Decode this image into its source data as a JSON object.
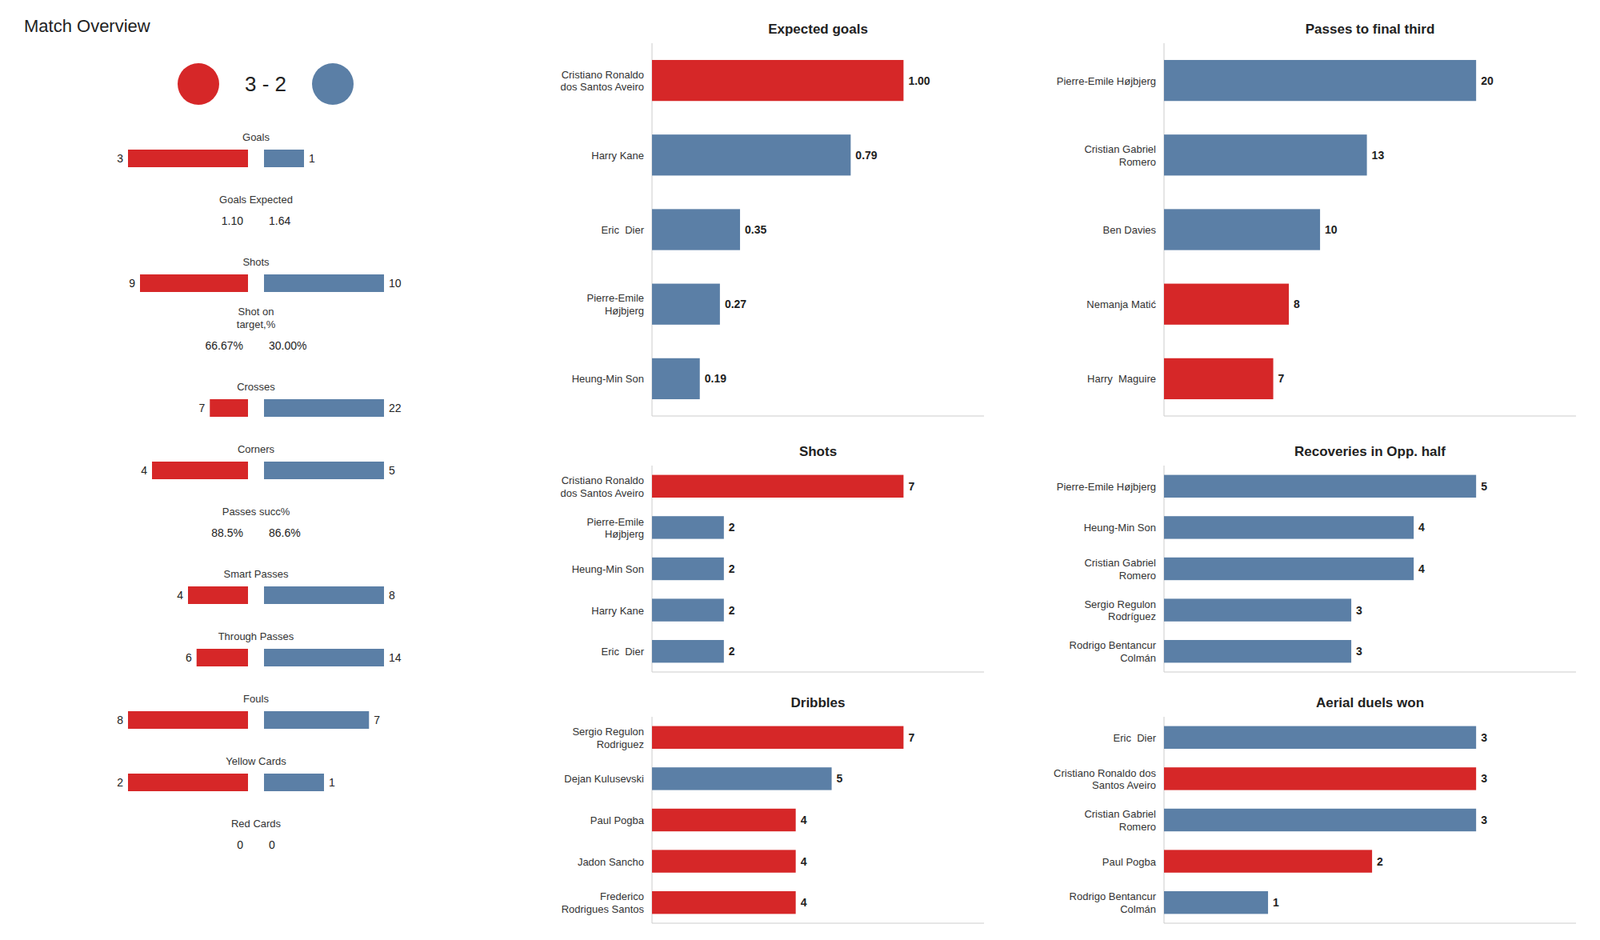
{
  "chart_data": [
    {
      "type": "diverging",
      "title": "Match Overview",
      "subtitle": "3 - 2",
      "data_labels": true,
      "categories": [
        "Goals",
        "Goals Expected",
        "Shots",
        "Shot on\ntarget,%",
        "Crosses",
        "Corners",
        "Passes succ%",
        "Smart Passes",
        "Through Passes",
        "Fouls",
        "Yellow Cards",
        "Red Cards"
      ],
      "series": [
        {
          "color": "#d62728",
          "values": [
            3,
            1.1,
            9,
            66.67,
            7,
            4,
            88.5,
            4,
            6,
            8,
            2,
            0
          ],
          "value_labels": [
            "3",
            "1.10",
            "9",
            "66.67%",
            "7",
            "4",
            "88.5%",
            "4",
            "6",
            "8",
            "2",
            "0"
          ],
          "colors": [
            "#d62728",
            null,
            "#d62728",
            null,
            "#d62728",
            "#d62728",
            null,
            "#d62728",
            "#d62728",
            "#d62728",
            "#d62728",
            null
          ]
        },
        {
          "color": "#5b7fa6",
          "values": [
            1,
            1.64,
            10,
            30.0,
            22,
            5,
            86.6,
            8,
            14,
            7,
            1,
            0
          ],
          "value_labels": [
            "1",
            "1.64",
            "10",
            "30.00%",
            "22",
            "5",
            "86.6%",
            "8",
            "14",
            "7",
            "1",
            "0"
          ],
          "colors": [
            "#5b7fa6",
            null,
            "#5b7fa6",
            null,
            "#5b7fa6",
            "#5b7fa6",
            null,
            "#5b7fa6",
            "#5b7fa6",
            "#5b7fa6",
            "#5b7fa6",
            null
          ]
        }
      ]
    },
    {
      "type": "bar",
      "orientation": "horizontal",
      "title": "Expected goals",
      "data_labels": true,
      "tick_labels": "y",
      "categories": [
        "Cristiano Ronaldo\ndos Santos Aveiro",
        "Harry Kane",
        "Eric  Dier",
        "Pierre-Emile\nHøjbjerg",
        "Heung-Min Son"
      ],
      "values": [
        1.0,
        0.79,
        0.35,
        0.27,
        0.19
      ],
      "value_labels": [
        "1.00",
        "0.79",
        "0.35",
        "0.27",
        "0.19"
      ],
      "colors": [
        "#d62728",
        "#5b7fa6",
        "#5b7fa6",
        "#5b7fa6",
        "#5b7fa6"
      ],
      "xlim": [
        0,
        1.32
      ]
    },
    {
      "type": "bar",
      "orientation": "horizontal",
      "title": "Shots",
      "data_labels": true,
      "tick_labels": "y",
      "categories": [
        "Cristiano Ronaldo\ndos Santos Aveiro",
        "Pierre-Emile\nHøjbjerg",
        "Heung-Min Son",
        "Harry Kane",
        "Eric  Dier"
      ],
      "values": [
        7,
        2,
        2,
        2,
        2
      ],
      "colors": [
        "#d62728",
        "#5b7fa6",
        "#5b7fa6",
        "#5b7fa6",
        "#5b7fa6"
      ],
      "xlim": [
        0,
        9.24
      ]
    },
    {
      "type": "bar",
      "orientation": "horizontal",
      "title": "Dribbles",
      "data_labels": true,
      "tick_labels": "y",
      "categories": [
        "Sergio Regulon\nRodriguez",
        "Dejan Kulusevski",
        "Paul Pogba",
        "Jadon Sancho",
        "Frederico\nRodrigues Santos"
      ],
      "values": [
        7,
        5,
        4,
        4,
        4
      ],
      "colors": [
        "#d62728",
        "#5b7fa6",
        "#d62728",
        "#d62728",
        "#d62728"
      ],
      "xlim": [
        0,
        9.24
      ]
    },
    {
      "type": "bar",
      "orientation": "horizontal",
      "title": "Passes to final third",
      "data_labels": true,
      "tick_labels": "y",
      "categories": [
        "Pierre-Emile Højbjerg",
        "Cristian Gabriel\nRomero",
        "Ben Davies",
        "Nemanja Matić",
        "Harry  Maguire"
      ],
      "values": [
        20,
        13,
        10,
        8,
        7
      ],
      "colors": [
        "#5b7fa6",
        "#5b7fa6",
        "#5b7fa6",
        "#d62728",
        "#d62728"
      ],
      "xlim": [
        0,
        26.4
      ]
    },
    {
      "type": "bar",
      "orientation": "horizontal",
      "title": "Recoveries in Opp. half",
      "data_labels": true,
      "tick_labels": "y",
      "categories": [
        "Pierre-Emile Højbjerg",
        "Heung-Min Son",
        "Cristian Gabriel\nRomero",
        "Sergio Regulon\nRodríguez",
        "Rodrigo Bentancur\nColmán"
      ],
      "values": [
        5,
        4,
        4,
        3,
        3
      ],
      "colors": [
        "#5b7fa6",
        "#5b7fa6",
        "#5b7fa6",
        "#5b7fa6",
        "#5b7fa6"
      ],
      "xlim": [
        0,
        6.6
      ]
    },
    {
      "type": "bar",
      "orientation": "horizontal",
      "title": "Aerial duels won",
      "data_labels": true,
      "tick_labels": "y",
      "categories": [
        "Eric  Dier",
        "Cristiano Ronaldo dos\nSantos Aveiro",
        "Cristian Gabriel\nRomero",
        "Paul Pogba",
        "Rodrigo Bentancur\nColmán"
      ],
      "values": [
        3,
        3,
        3,
        2,
        1
      ],
      "colors": [
        "#5b7fa6",
        "#d62728",
        "#5b7fa6",
        "#d62728",
        "#5b7fa6"
      ],
      "xlim": [
        0,
        3.96
      ]
    }
  ]
}
